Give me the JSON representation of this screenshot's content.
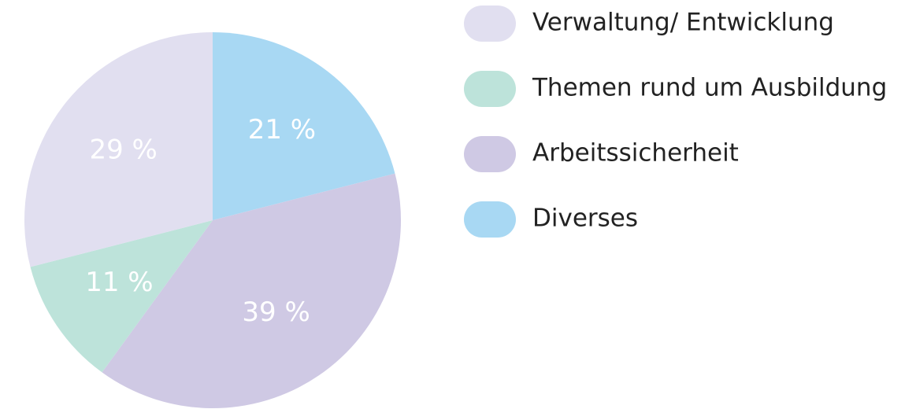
{
  "chart_data": {
    "type": "pie",
    "categories": [
      "Verwaltung/ Entwicklung",
      "Themen rund um Ausbildung",
      "Arbeitssicherheit",
      "Diverses"
    ],
    "values": [
      29,
      11,
      39,
      21
    ],
    "value_labels": [
      "29 %",
      "11 %",
      "39 %",
      "21 %"
    ],
    "colors": [
      "#e1dff0",
      "#bde3da",
      "#cfc9e4",
      "#a8d8f3"
    ]
  }
}
